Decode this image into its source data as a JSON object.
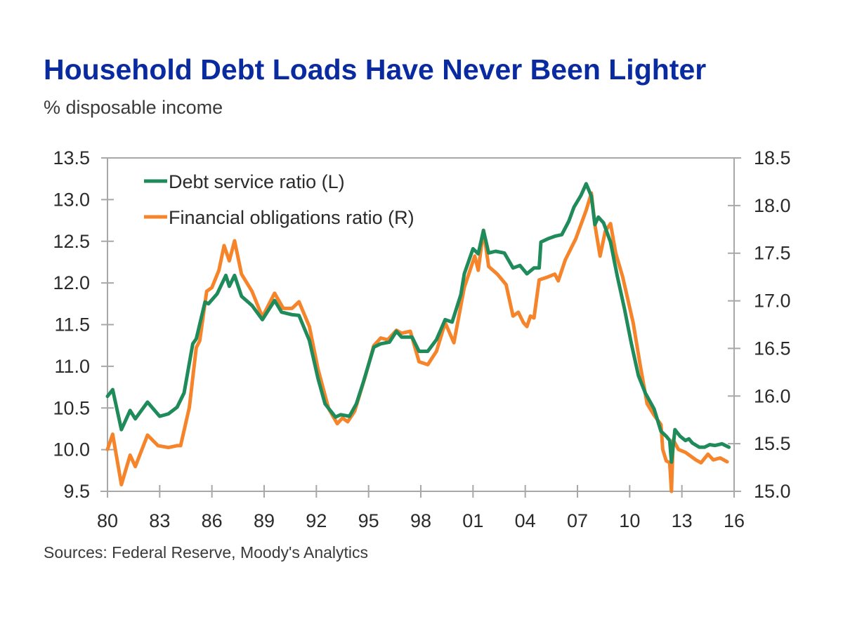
{
  "title": "Household Debt Loads Have Never Been Lighter",
  "subtitle": "% disposable income",
  "source": "Sources: Federal Reserve, Moody's Analytics",
  "colors": {
    "title": "#0a2aa0",
    "green": "#1f8a5a",
    "orange": "#f5842a",
    "axis": "#a8a8a8"
  },
  "chart_data": {
    "type": "line",
    "title": "Household Debt Loads Have Never Been Lighter",
    "subtitle": "% disposable income",
    "xlabel": "",
    "ylabel_left": "",
    "ylabel_right": "",
    "xlim": [
      1980,
      2016
    ],
    "ylim_left": [
      9.5,
      13.5
    ],
    "ylim_right": [
      15.0,
      18.5
    ],
    "x_ticks": [
      1980,
      1983,
      1986,
      1989,
      1992,
      1995,
      1998,
      2001,
      2004,
      2007,
      2010,
      2013,
      2016
    ],
    "x_tick_labels": [
      "80",
      "83",
      "86",
      "89",
      "92",
      "95",
      "98",
      "01",
      "04",
      "07",
      "10",
      "13",
      "16"
    ],
    "y_ticks_left": [
      "13.5",
      "13.0",
      "12.5",
      "12.0",
      "11.5",
      "11.0",
      "10.5",
      "10.0",
      "9.5"
    ],
    "y_ticks_right": [
      "18.5",
      "18.0",
      "17.5",
      "17.0",
      "16.5",
      "16.0",
      "15.5",
      "15.0"
    ],
    "grid": false,
    "legend_position": "top-left",
    "series": [
      {
        "name": "Debt service ratio (L)",
        "axis": "left",
        "color": "#1f8a5a",
        "x": [
          1980.0,
          1980.3,
          1980.8,
          1981.3,
          1981.6,
          1982.3,
          1983.0,
          1983.5,
          1984.0,
          1984.4,
          1984.9,
          1985.1,
          1985.6,
          1985.8,
          1986.3,
          1986.8,
          1987.0,
          1987.3,
          1987.7,
          1988.3,
          1988.9,
          1989.6,
          1990.0,
          1990.6,
          1991.0,
          1991.6,
          1992.1,
          1992.5,
          1993.1,
          1993.4,
          1993.9,
          1994.3,
          1994.7,
          1995.3,
          1995.7,
          1996.2,
          1996.6,
          1996.9,
          1997.5,
          1997.9,
          1998.4,
          1998.9,
          1999.4,
          1999.8,
          2000.3,
          2000.5,
          2001.0,
          2001.3,
          2001.6,
          2001.9,
          2002.3,
          2002.8,
          2003.3,
          2003.7,
          2004.1,
          2004.5,
          2004.8,
          2004.9,
          2005.3,
          2005.7,
          2006.1,
          2006.5,
          2006.8,
          2007.2,
          2007.5,
          2007.8,
          2008.0,
          2008.2,
          2008.5,
          2008.9,
          2009.1,
          2009.3,
          2009.7,
          2010.1,
          2010.5,
          2010.9,
          2011.4,
          2011.8,
          2012.1,
          2012.3,
          2012.4,
          2012.6,
          2012.9,
          2013.2,
          2013.4,
          2013.6,
          2014.0,
          2014.3,
          2014.6,
          2014.9,
          2015.3,
          2015.7
        ],
        "values": [
          10.64,
          10.72,
          10.24,
          10.47,
          10.37,
          10.57,
          10.4,
          10.43,
          10.51,
          10.68,
          11.27,
          11.33,
          11.77,
          11.75,
          11.87,
          12.09,
          11.96,
          12.09,
          11.84,
          11.73,
          11.56,
          11.79,
          11.65,
          11.62,
          11.61,
          11.31,
          10.85,
          10.55,
          10.39,
          10.42,
          10.4,
          10.55,
          10.81,
          11.23,
          11.27,
          11.29,
          11.42,
          11.35,
          11.35,
          11.18,
          11.18,
          11.32,
          11.56,
          11.53,
          11.86,
          12.11,
          12.41,
          12.35,
          12.63,
          12.36,
          12.38,
          12.36,
          12.18,
          12.21,
          12.11,
          12.18,
          12.18,
          12.49,
          12.53,
          12.56,
          12.58,
          12.74,
          12.91,
          13.05,
          13.19,
          13.04,
          12.7,
          12.79,
          12.72,
          12.49,
          12.28,
          12.07,
          11.69,
          11.27,
          10.89,
          10.68,
          10.49,
          10.22,
          10.16,
          10.11,
          9.85,
          10.24,
          10.16,
          10.11,
          10.13,
          10.08,
          10.03,
          10.03,
          10.06,
          10.05,
          10.07,
          10.03
        ]
      },
      {
        "name": "Financial obligations ratio (R)",
        "axis": "right",
        "color": "#f5842a",
        "x": [
          1980.0,
          1980.3,
          1980.8,
          1981.3,
          1981.6,
          1982.3,
          1982.9,
          1983.5,
          1984.0,
          1984.2,
          1984.7,
          1985.1,
          1985.3,
          1985.7,
          1986.0,
          1986.4,
          1986.7,
          1987.0,
          1987.3,
          1987.7,
          1988.3,
          1988.9,
          1989.6,
          1990.1,
          1990.6,
          1991.0,
          1991.6,
          1992.1,
          1992.7,
          1993.2,
          1993.5,
          1993.8,
          1994.2,
          1994.8,
          1995.3,
          1995.7,
          1996.1,
          1996.6,
          1996.9,
          1997.4,
          1997.9,
          1998.4,
          1998.9,
          1999.4,
          1999.9,
          2000.5,
          2001.1,
          2001.3,
          2001.6,
          2001.9,
          2002.4,
          2002.9,
          2003.3,
          2003.6,
          2003.9,
          2004.1,
          2004.3,
          2004.5,
          2004.8,
          2005.3,
          2005.7,
          2005.9,
          2006.3,
          2006.9,
          2007.5,
          2007.8,
          2008.0,
          2008.3,
          2008.6,
          2008.9,
          2009.2,
          2009.6,
          2010.2,
          2010.6,
          2011.0,
          2011.4,
          2011.8,
          2011.9,
          2012.1,
          2012.3,
          2012.4,
          2012.5,
          2012.8,
          2013.2,
          2013.5,
          2013.8,
          2014.1,
          2014.5,
          2014.8,
          2015.2,
          2015.6
        ],
        "values": [
          15.44,
          15.6,
          15.07,
          15.38,
          15.26,
          15.59,
          15.48,
          15.46,
          15.48,
          15.48,
          15.88,
          16.51,
          16.58,
          17.1,
          17.14,
          17.32,
          17.58,
          17.42,
          17.63,
          17.28,
          17.1,
          16.83,
          17.08,
          16.92,
          16.92,
          16.99,
          16.73,
          16.28,
          15.87,
          15.71,
          15.77,
          15.73,
          15.84,
          16.2,
          16.53,
          16.61,
          16.59,
          16.69,
          16.66,
          16.68,
          16.36,
          16.33,
          16.47,
          16.77,
          16.56,
          17.14,
          17.47,
          17.32,
          17.74,
          17.36,
          17.28,
          17.17,
          16.84,
          16.88,
          16.77,
          16.73,
          16.84,
          16.82,
          17.22,
          17.25,
          17.28,
          17.21,
          17.43,
          17.65,
          17.95,
          18.13,
          17.8,
          17.47,
          17.73,
          17.81,
          17.5,
          17.25,
          16.77,
          16.33,
          15.92,
          15.8,
          15.7,
          15.44,
          15.32,
          15.3,
          15.0,
          15.54,
          15.44,
          15.41,
          15.37,
          15.33,
          15.3,
          15.39,
          15.33,
          15.35,
          15.31
        ]
      }
    ]
  }
}
